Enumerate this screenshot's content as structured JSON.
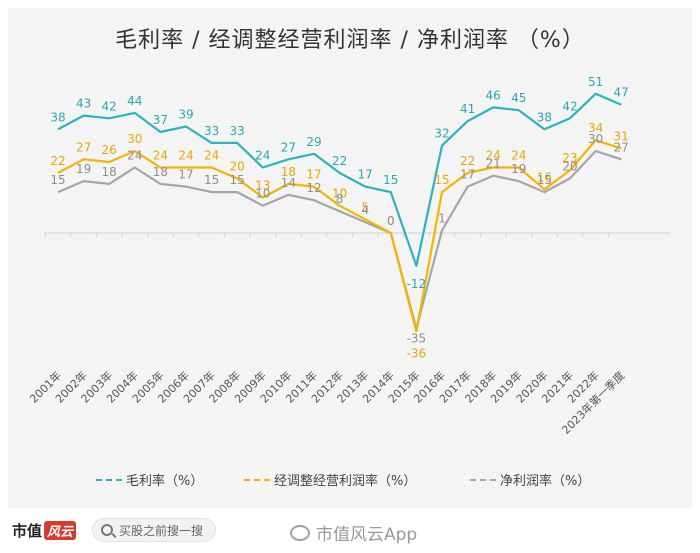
{
  "chart_data": {
    "type": "line",
    "title": "毛利率 / 经调整经营利润率 / 净利润率   （%）",
    "xlabel": "",
    "ylabel": "",
    "ylim": [
      -40,
      56
    ],
    "grid": false,
    "legend_position": "bottom",
    "categories": [
      "2001年",
      "2002年",
      "2003年",
      "2004年",
      "2005年",
      "2006年",
      "2007年",
      "2008年",
      "2009年",
      "2010年",
      "2011年",
      "2012年",
      "2013年",
      "2014年",
      "2015年",
      "2016年",
      "2017年",
      "2018年",
      "2019年",
      "2020年",
      "2021年",
      "2022年",
      "2023年第一季度"
    ],
    "series": [
      {
        "name": "毛利率（%）",
        "color": "#2bb3c0",
        "values": [
          38,
          43,
          42,
          44,
          37,
          39,
          33,
          33,
          24,
          27,
          29,
          22,
          17,
          15,
          -12,
          32,
          41,
          46,
          45,
          38,
          42,
          51,
          47
        ]
      },
      {
        "name": "经调整经营利润率（%）",
        "color": "#f5b400",
        "values": [
          22,
          27,
          26,
          30,
          24,
          24,
          24,
          20,
          13,
          18,
          17,
          10,
          5,
          0,
          -36,
          15,
          22,
          24,
          24,
          16,
          23,
          34,
          31
        ]
      },
      {
        "name": "净利润率（%）",
        "color": "#a6a6a6",
        "values": [
          15,
          19,
          18,
          24,
          18,
          17,
          15,
          15,
          10,
          14,
          12,
          8,
          4,
          0,
          -35,
          1,
          17,
          21,
          19,
          15,
          20,
          30,
          27
        ]
      }
    ]
  },
  "legend": [
    "毛利率（%）",
    "经调整经营利润率（%）",
    "净利润率（%）"
  ],
  "footer": {
    "brand_text": "市值",
    "brand_mark": "风云",
    "search_placeholder": "买股之前搜一搜",
    "watermark": "市值风云App"
  }
}
